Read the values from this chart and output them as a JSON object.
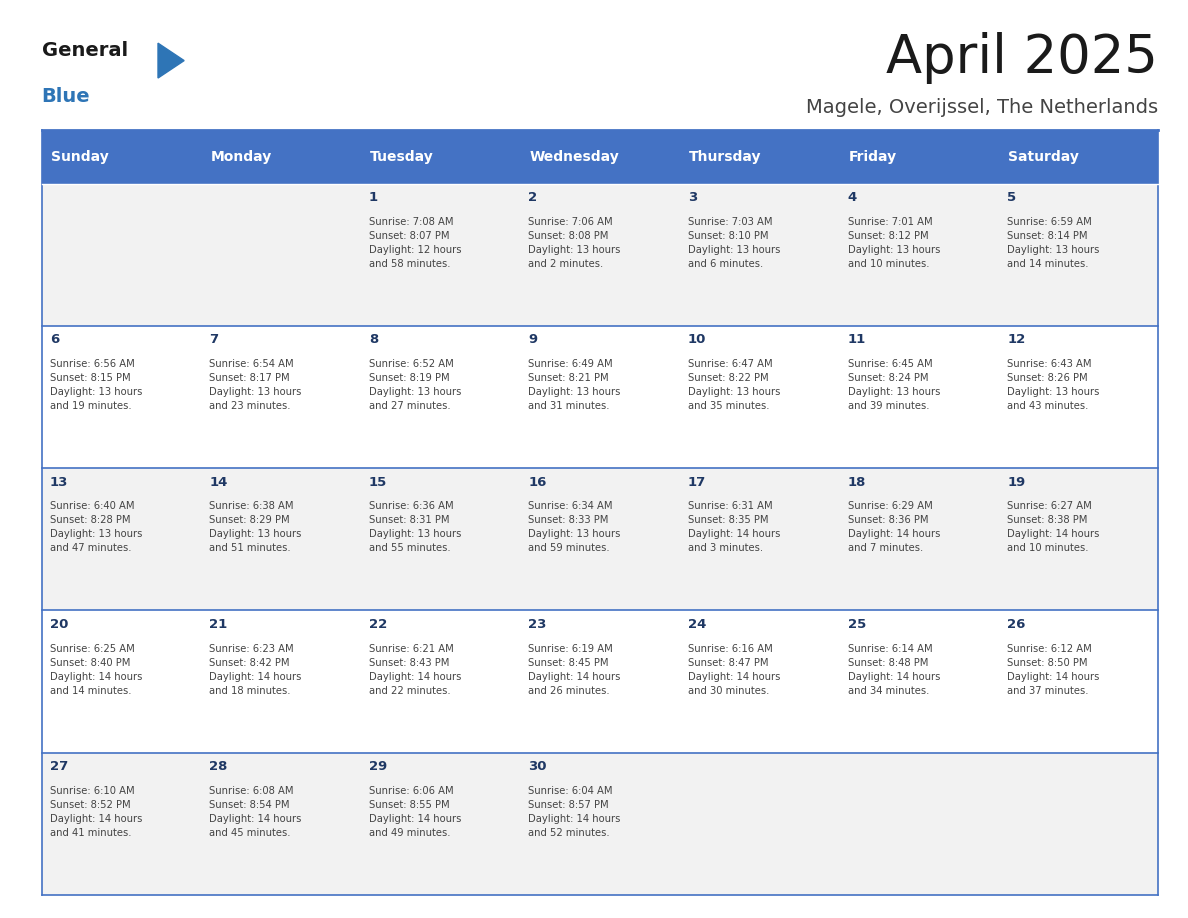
{
  "title": "April 2025",
  "subtitle": "Magele, Overijssel, The Netherlands",
  "header_bg_color": "#4472C4",
  "header_text_color": "#FFFFFF",
  "cell_bg_even": "#F2F2F2",
  "cell_bg_odd": "#FFFFFF",
  "cell_text_color": "#444444",
  "day_num_color": "#1F3864",
  "border_color": "#4472C4",
  "days_of_week": [
    "Sunday",
    "Monday",
    "Tuesday",
    "Wednesday",
    "Thursday",
    "Friday",
    "Saturday"
  ],
  "weeks": [
    [
      {
        "day": "",
        "info": ""
      },
      {
        "day": "",
        "info": ""
      },
      {
        "day": "1",
        "info": "Sunrise: 7:08 AM\nSunset: 8:07 PM\nDaylight: 12 hours\nand 58 minutes."
      },
      {
        "day": "2",
        "info": "Sunrise: 7:06 AM\nSunset: 8:08 PM\nDaylight: 13 hours\nand 2 minutes."
      },
      {
        "day": "3",
        "info": "Sunrise: 7:03 AM\nSunset: 8:10 PM\nDaylight: 13 hours\nand 6 minutes."
      },
      {
        "day": "4",
        "info": "Sunrise: 7:01 AM\nSunset: 8:12 PM\nDaylight: 13 hours\nand 10 minutes."
      },
      {
        "day": "5",
        "info": "Sunrise: 6:59 AM\nSunset: 8:14 PM\nDaylight: 13 hours\nand 14 minutes."
      }
    ],
    [
      {
        "day": "6",
        "info": "Sunrise: 6:56 AM\nSunset: 8:15 PM\nDaylight: 13 hours\nand 19 minutes."
      },
      {
        "day": "7",
        "info": "Sunrise: 6:54 AM\nSunset: 8:17 PM\nDaylight: 13 hours\nand 23 minutes."
      },
      {
        "day": "8",
        "info": "Sunrise: 6:52 AM\nSunset: 8:19 PM\nDaylight: 13 hours\nand 27 minutes."
      },
      {
        "day": "9",
        "info": "Sunrise: 6:49 AM\nSunset: 8:21 PM\nDaylight: 13 hours\nand 31 minutes."
      },
      {
        "day": "10",
        "info": "Sunrise: 6:47 AM\nSunset: 8:22 PM\nDaylight: 13 hours\nand 35 minutes."
      },
      {
        "day": "11",
        "info": "Sunrise: 6:45 AM\nSunset: 8:24 PM\nDaylight: 13 hours\nand 39 minutes."
      },
      {
        "day": "12",
        "info": "Sunrise: 6:43 AM\nSunset: 8:26 PM\nDaylight: 13 hours\nand 43 minutes."
      }
    ],
    [
      {
        "day": "13",
        "info": "Sunrise: 6:40 AM\nSunset: 8:28 PM\nDaylight: 13 hours\nand 47 minutes."
      },
      {
        "day": "14",
        "info": "Sunrise: 6:38 AM\nSunset: 8:29 PM\nDaylight: 13 hours\nand 51 minutes."
      },
      {
        "day": "15",
        "info": "Sunrise: 6:36 AM\nSunset: 8:31 PM\nDaylight: 13 hours\nand 55 minutes."
      },
      {
        "day": "16",
        "info": "Sunrise: 6:34 AM\nSunset: 8:33 PM\nDaylight: 13 hours\nand 59 minutes."
      },
      {
        "day": "17",
        "info": "Sunrise: 6:31 AM\nSunset: 8:35 PM\nDaylight: 14 hours\nand 3 minutes."
      },
      {
        "day": "18",
        "info": "Sunrise: 6:29 AM\nSunset: 8:36 PM\nDaylight: 14 hours\nand 7 minutes."
      },
      {
        "day": "19",
        "info": "Sunrise: 6:27 AM\nSunset: 8:38 PM\nDaylight: 14 hours\nand 10 minutes."
      }
    ],
    [
      {
        "day": "20",
        "info": "Sunrise: 6:25 AM\nSunset: 8:40 PM\nDaylight: 14 hours\nand 14 minutes."
      },
      {
        "day": "21",
        "info": "Sunrise: 6:23 AM\nSunset: 8:42 PM\nDaylight: 14 hours\nand 18 minutes."
      },
      {
        "day": "22",
        "info": "Sunrise: 6:21 AM\nSunset: 8:43 PM\nDaylight: 14 hours\nand 22 minutes."
      },
      {
        "day": "23",
        "info": "Sunrise: 6:19 AM\nSunset: 8:45 PM\nDaylight: 14 hours\nand 26 minutes."
      },
      {
        "day": "24",
        "info": "Sunrise: 6:16 AM\nSunset: 8:47 PM\nDaylight: 14 hours\nand 30 minutes."
      },
      {
        "day": "25",
        "info": "Sunrise: 6:14 AM\nSunset: 8:48 PM\nDaylight: 14 hours\nand 34 minutes."
      },
      {
        "day": "26",
        "info": "Sunrise: 6:12 AM\nSunset: 8:50 PM\nDaylight: 14 hours\nand 37 minutes."
      }
    ],
    [
      {
        "day": "27",
        "info": "Sunrise: 6:10 AM\nSunset: 8:52 PM\nDaylight: 14 hours\nand 41 minutes."
      },
      {
        "day": "28",
        "info": "Sunrise: 6:08 AM\nSunset: 8:54 PM\nDaylight: 14 hours\nand 45 minutes."
      },
      {
        "day": "29",
        "info": "Sunrise: 6:06 AM\nSunset: 8:55 PM\nDaylight: 14 hours\nand 49 minutes."
      },
      {
        "day": "30",
        "info": "Sunrise: 6:04 AM\nSunset: 8:57 PM\nDaylight: 14 hours\nand 52 minutes."
      },
      {
        "day": "",
        "info": ""
      },
      {
        "day": "",
        "info": ""
      },
      {
        "day": "",
        "info": ""
      }
    ]
  ],
  "logo_color_general": "#1a1a1a",
  "logo_color_blue": "#2E75B6",
  "logo_triangle_color": "#2E75B6",
  "title_color": "#1a1a1a",
  "subtitle_color": "#444444"
}
